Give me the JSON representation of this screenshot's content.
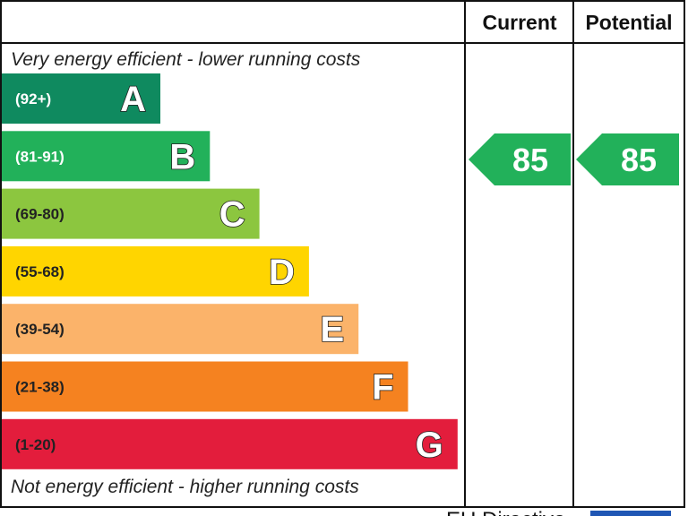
{
  "chart_data": {
    "type": "bar",
    "headers": {
      "current": "Current",
      "potential": "Potential"
    },
    "top_caption": "Very energy efficient - lower running costs",
    "bottom_caption": "Not energy efficient - higher running costs",
    "bands": [
      {
        "letter": "A",
        "range": "(92+)",
        "min": 92,
        "max": 100,
        "color": "#0f8a5f",
        "range_color": "#ffffff"
      },
      {
        "letter": "B",
        "range": "(81-91)",
        "min": 81,
        "max": 91,
        "color": "#22b15a",
        "range_color": "#ffffff"
      },
      {
        "letter": "C",
        "range": "(69-80)",
        "min": 69,
        "max": 80,
        "color": "#8cc63f",
        "range_color": "#222222"
      },
      {
        "letter": "D",
        "range": "(55-68)",
        "min": 55,
        "max": 68,
        "color": "#ffd500",
        "range_color": "#222222"
      },
      {
        "letter": "E",
        "range": "(39-54)",
        "min": 39,
        "max": 54,
        "color": "#fbb36a",
        "range_color": "#222222"
      },
      {
        "letter": "F",
        "range": "(21-38)",
        "min": 21,
        "max": 38,
        "color": "#f58220",
        "range_color": "#222222"
      },
      {
        "letter": "G",
        "range": "(1-20)",
        "min": 1,
        "max": 20,
        "color": "#e31d3c",
        "range_color": "#222222"
      }
    ],
    "current": {
      "value": 85,
      "band": "B",
      "color": "#22b15a"
    },
    "potential": {
      "value": 85,
      "band": "B",
      "color": "#22b15a"
    },
    "footer_text": "EU Directive"
  }
}
